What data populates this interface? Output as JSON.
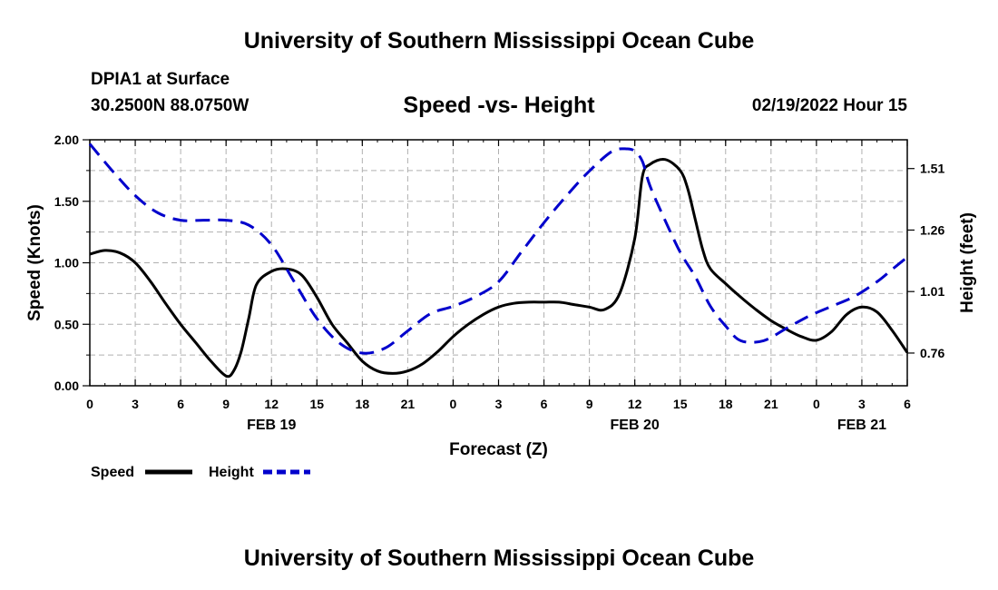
{
  "header": {
    "title": "University of Southern Mississippi Ocean Cube",
    "station": "DPIA1 at Surface",
    "coords": "30.2500N  88.0750W",
    "datetime": "02/19/2022 Hour 15"
  },
  "footer": {
    "title": "University of Southern Mississippi Ocean Cube"
  },
  "chart_data": {
    "type": "line",
    "title": "Speed -vs- Height",
    "xlabel": "Forecast (Z)",
    "ylabel": "Speed (Knots)",
    "y2label": "Height (feet)",
    "xlim": [
      0,
      54
    ],
    "ylim": [
      0,
      2.0
    ],
    "y2lim": [
      0.627,
      1.627
    ],
    "x_tick_labels": [
      "0",
      "3",
      "6",
      "9",
      "12",
      "15",
      "18",
      "21",
      "0",
      "3",
      "6",
      "9",
      "12",
      "15",
      "18",
      "21",
      "0",
      "3",
      "6"
    ],
    "date_labels": [
      {
        "label": "FEB 19",
        "x": 12
      },
      {
        "label": "FEB 20",
        "x": 36
      },
      {
        "label": "FEB 21",
        "x": 51
      }
    ],
    "y_ticks": [
      "0.00",
      "0.50",
      "1.00",
      "1.50",
      "2.00"
    ],
    "y2_ticks": [
      "0.76",
      "1.01",
      "1.26",
      "1.51"
    ],
    "legend": [
      "Speed",
      "Height"
    ],
    "series": [
      {
        "name": "Speed",
        "color": "#000000",
        "style": "solid",
        "axis": "left",
        "x": [
          0,
          1,
          2,
          3,
          4,
          5,
          6,
          7,
          8,
          9,
          9.5,
          10,
          10.5,
          11,
          12,
          13,
          14,
          15,
          16,
          17,
          18,
          19,
          20,
          21,
          22,
          23,
          24,
          25,
          26,
          27,
          28,
          29,
          30,
          31,
          32,
          33,
          34,
          35,
          36,
          36.5,
          37,
          38,
          39,
          39.5,
          40,
          40.5,
          41,
          42,
          43,
          44,
          45,
          46,
          47,
          48,
          49,
          50,
          51,
          52,
          53,
          54
        ],
        "values": [
          1.07,
          1.1,
          1.08,
          1.0,
          0.85,
          0.67,
          0.5,
          0.35,
          0.2,
          0.08,
          0.12,
          0.28,
          0.55,
          0.82,
          0.93,
          0.95,
          0.9,
          0.72,
          0.5,
          0.35,
          0.2,
          0.12,
          0.1,
          0.12,
          0.18,
          0.28,
          0.4,
          0.5,
          0.58,
          0.64,
          0.67,
          0.68,
          0.68,
          0.68,
          0.66,
          0.64,
          0.62,
          0.75,
          1.2,
          1.7,
          1.8,
          1.84,
          1.75,
          1.6,
          1.35,
          1.1,
          0.95,
          0.83,
          0.72,
          0.62,
          0.53,
          0.46,
          0.4,
          0.37,
          0.44,
          0.58,
          0.64,
          0.6,
          0.45,
          0.27
        ]
      },
      {
        "name": "Height",
        "color": "#0000cc",
        "style": "dashed",
        "axis": "right",
        "x": [
          0,
          1.5,
          3,
          4.5,
          6,
          7.5,
          9,
          10.5,
          12,
          13.5,
          15,
          16.5,
          18,
          19.5,
          21,
          22.5,
          24,
          25.5,
          27,
          28.5,
          30,
          31.5,
          33,
          34.5,
          35.5,
          36,
          36.5,
          37,
          38,
          39,
          40,
          41,
          42,
          43,
          44.5,
          46,
          47.5,
          49,
          50.5,
          52,
          53,
          54
        ],
        "values": [
          1.61,
          1.5,
          1.4,
          1.33,
          1.3,
          1.3,
          1.3,
          1.28,
          1.2,
          1.05,
          0.9,
          0.8,
          0.76,
          0.78,
          0.85,
          0.92,
          0.95,
          0.99,
          1.05,
          1.17,
          1.29,
          1.4,
          1.5,
          1.58,
          1.59,
          1.58,
          1.54,
          1.44,
          1.3,
          1.17,
          1.07,
          0.95,
          0.87,
          0.81,
          0.81,
          0.86,
          0.91,
          0.95,
          0.99,
          1.05,
          1.1,
          1.15
        ]
      }
    ]
  }
}
